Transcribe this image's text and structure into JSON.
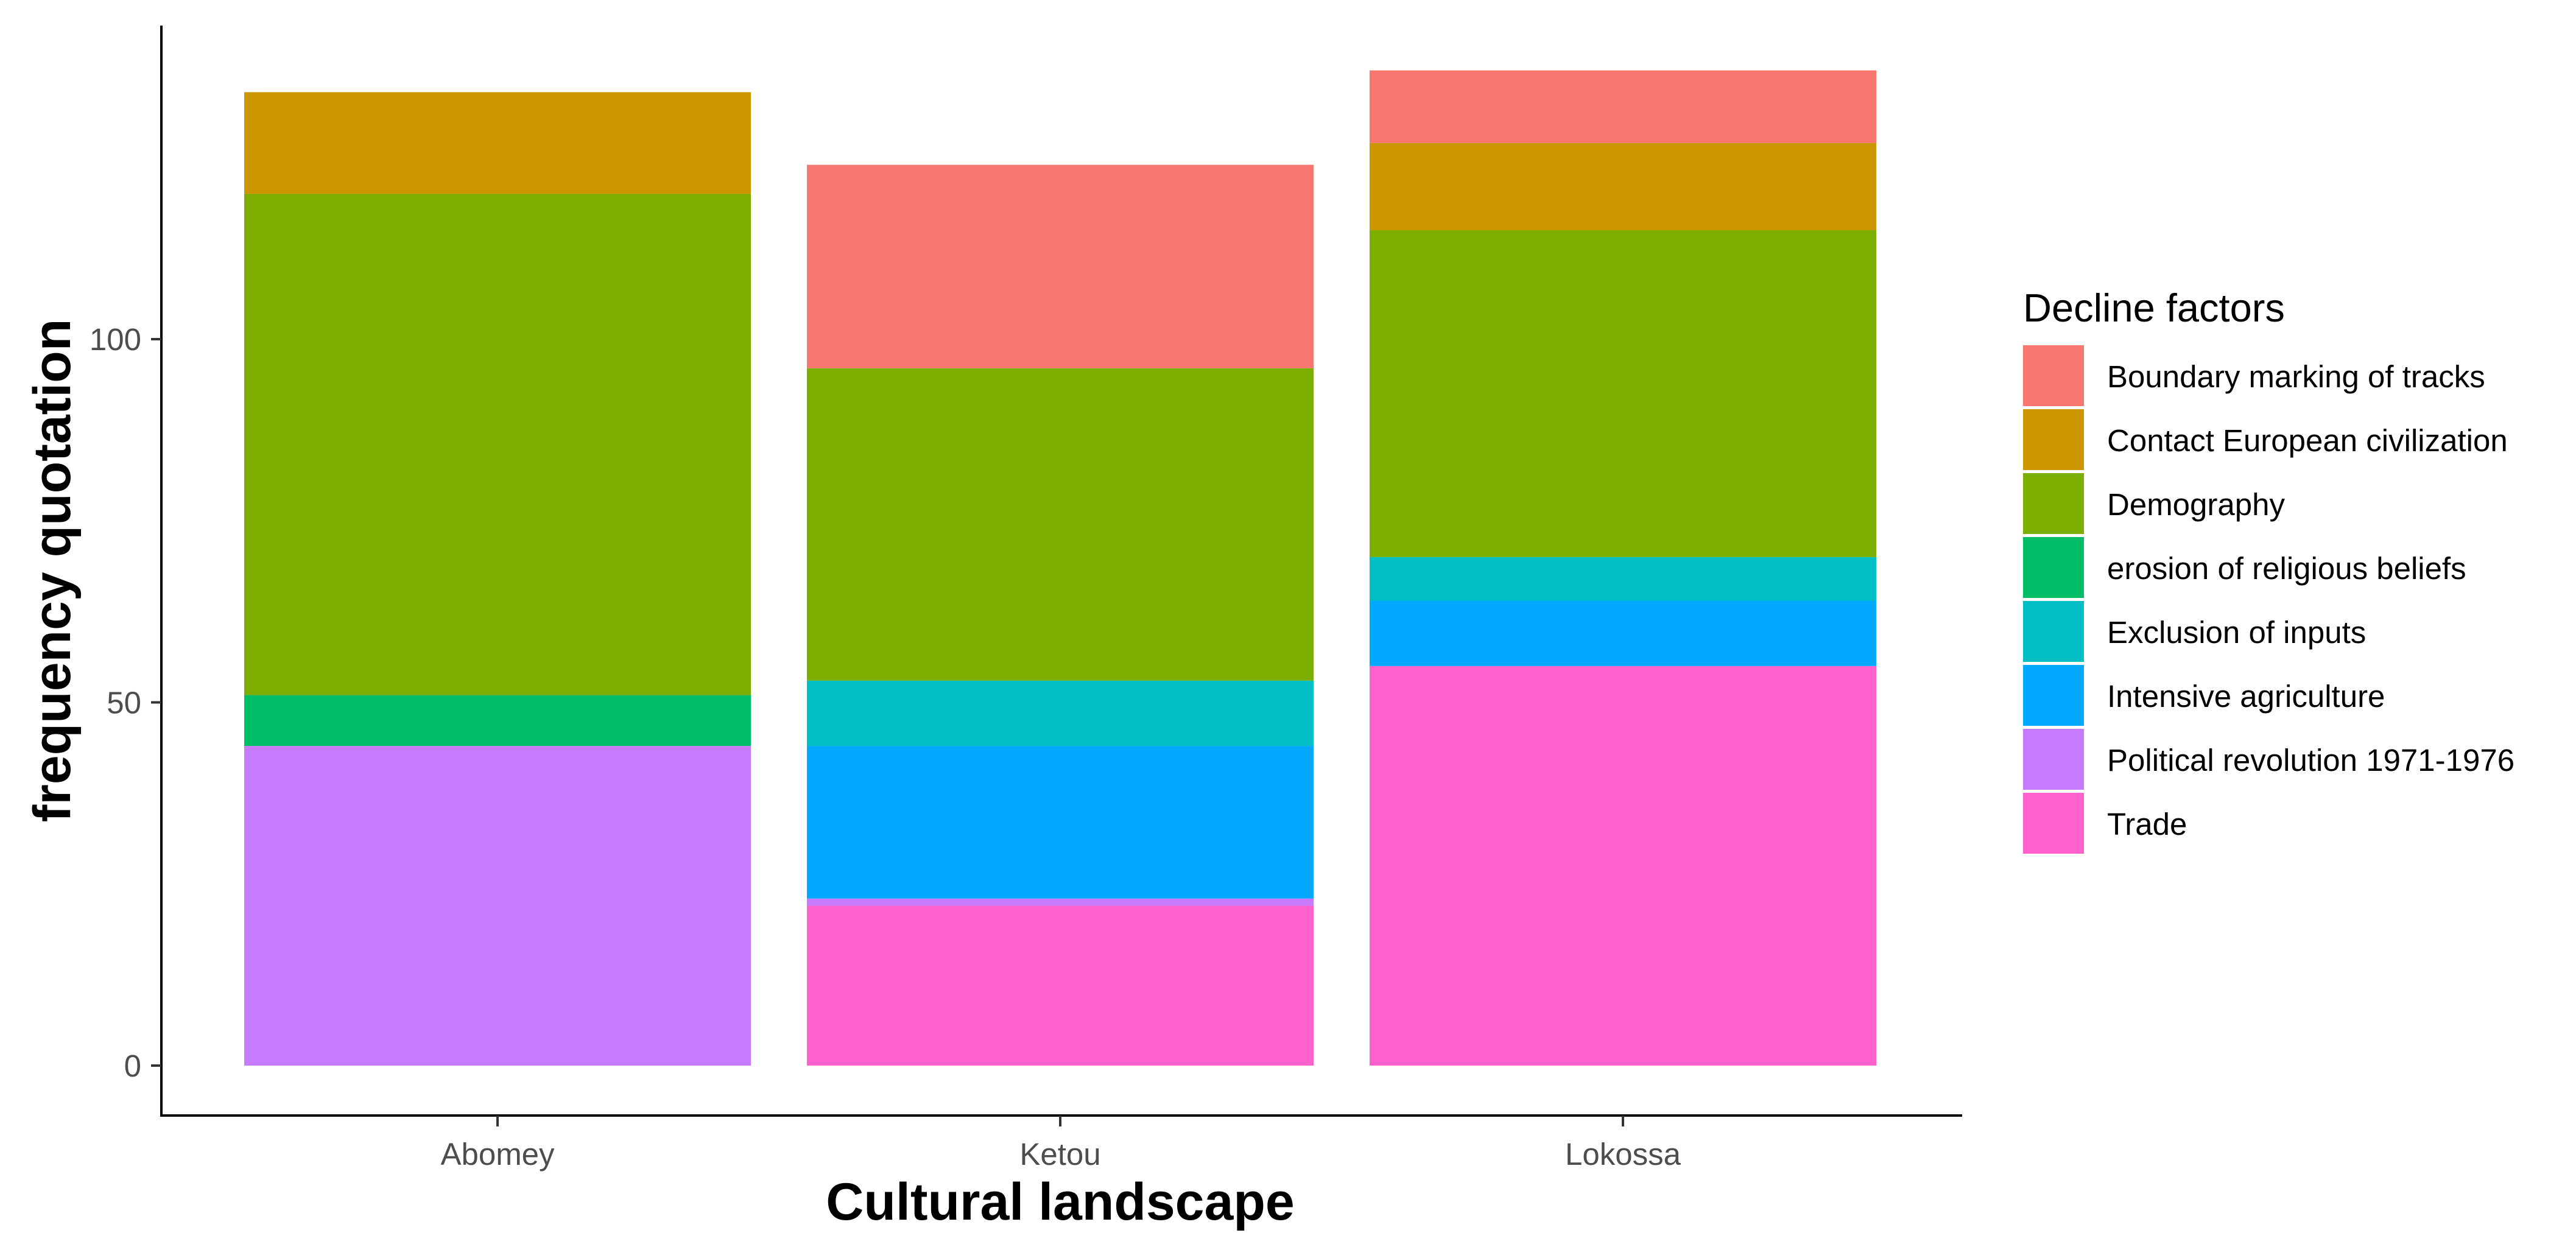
{
  "chart_data": {
    "type": "bar",
    "stacked": true,
    "xlabel": "Cultural landscape",
    "ylabel": "frequency quotation",
    "categories": [
      "Abomey",
      "Ketou",
      "Lokossa"
    ],
    "ylim": [
      0,
      136
    ],
    "yticks": [
      0,
      50,
      100
    ],
    "legend_title": "Decline factors",
    "legend_position": "right",
    "grid": false,
    "series": [
      {
        "name": "Trade",
        "color": "#FF61CC",
        "values": [
          0,
          22,
          55
        ]
      },
      {
        "name": "Political revolution 1971-1976",
        "color": "#C77CFF",
        "values": [
          44,
          1,
          0
        ]
      },
      {
        "name": "Intensive agriculture",
        "color": "#00A9FF",
        "values": [
          0,
          21,
          9
        ]
      },
      {
        "name": "Exclusion of inputs",
        "color": "#00BFC4",
        "values": [
          0,
          9,
          6
        ]
      },
      {
        "name": "erosion of religious beliefs",
        "color": "#00BE67",
        "values": [
          7,
          0,
          0
        ]
      },
      {
        "name": "Demography",
        "color": "#7CAE00",
        "values": [
          69,
          43,
          45
        ]
      },
      {
        "name": "Contact European civilization",
        "color": "#CD9600",
        "values": [
          14,
          0,
          12
        ]
      },
      {
        "name": "Boundary marking of tracks",
        "color": "#F8766D",
        "values": [
          0,
          28,
          10
        ]
      }
    ],
    "legend_order": [
      "Boundary marking of tracks",
      "Contact European civilization",
      "Demography",
      "erosion of religious beliefs",
      "Exclusion of inputs",
      "Intensive agriculture",
      "Political revolution 1971-1976",
      "Trade"
    ]
  }
}
